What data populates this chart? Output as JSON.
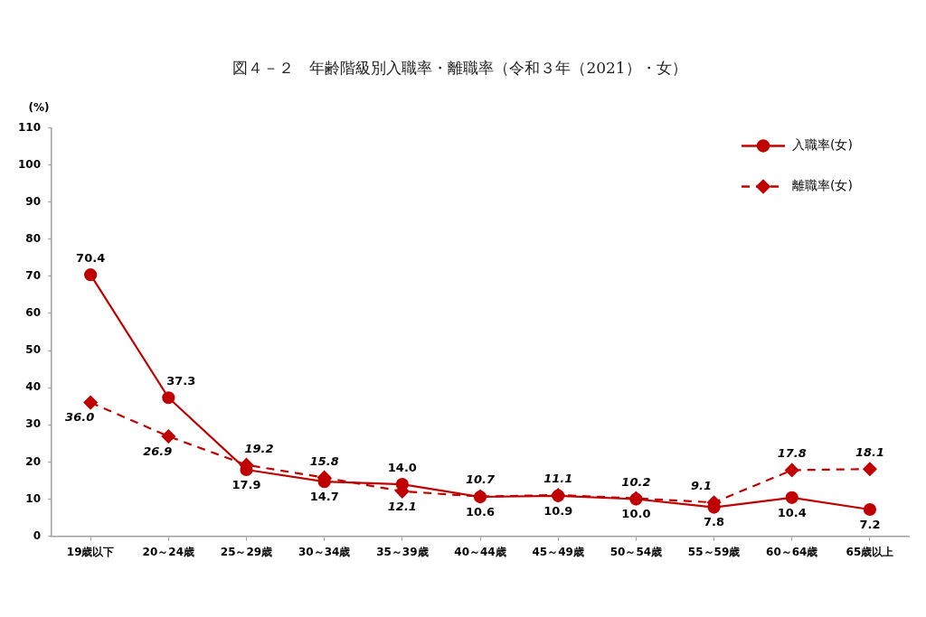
{
  "chart_data": {
    "type": "line",
    "title": "図４－２　年齢階級別入職率・離職率（令和３年（2021）・女）",
    "ylabel": "(%)",
    "categories": [
      "19歳以下",
      "20～24歳",
      "25～29歳",
      "30～34歳",
      "35～39歳",
      "40～44歳",
      "45～49歳",
      "50～54歳",
      "55～59歳",
      "60～64歳",
      "65歳以上"
    ],
    "series": [
      {
        "name": "入職率(女)",
        "color": "#c00000",
        "marker": "circle",
        "line_style": "solid",
        "values": [
          70.4,
          37.3,
          17.9,
          14.7,
          14.0,
          10.6,
          10.9,
          10.0,
          7.8,
          10.4,
          7.2
        ],
        "value_labels": [
          "70.4",
          "37.3",
          "17.9",
          "14.7",
          "14.0",
          "10.6",
          "10.9",
          "10.0",
          "7.8",
          "10.4",
          "7.2"
        ]
      },
      {
        "name": "離職率(女)",
        "color": "#c00000",
        "marker": "diamond",
        "line_style": "dashed",
        "values": [
          36.0,
          26.9,
          19.2,
          15.8,
          12.1,
          10.7,
          11.1,
          10.2,
          9.1,
          17.8,
          18.1
        ],
        "value_labels": [
          "36.0",
          "26.9",
          "19.2",
          "15.8",
          "12.1",
          "10.7",
          "11.1",
          "10.2",
          "9.1",
          "17.8",
          "18.1"
        ]
      }
    ],
    "ylim": [
      0,
      110
    ],
    "yticks": [
      0,
      10,
      20,
      30,
      40,
      50,
      60,
      70,
      80,
      90,
      100,
      110
    ],
    "grid": false,
    "legend": "top right"
  }
}
